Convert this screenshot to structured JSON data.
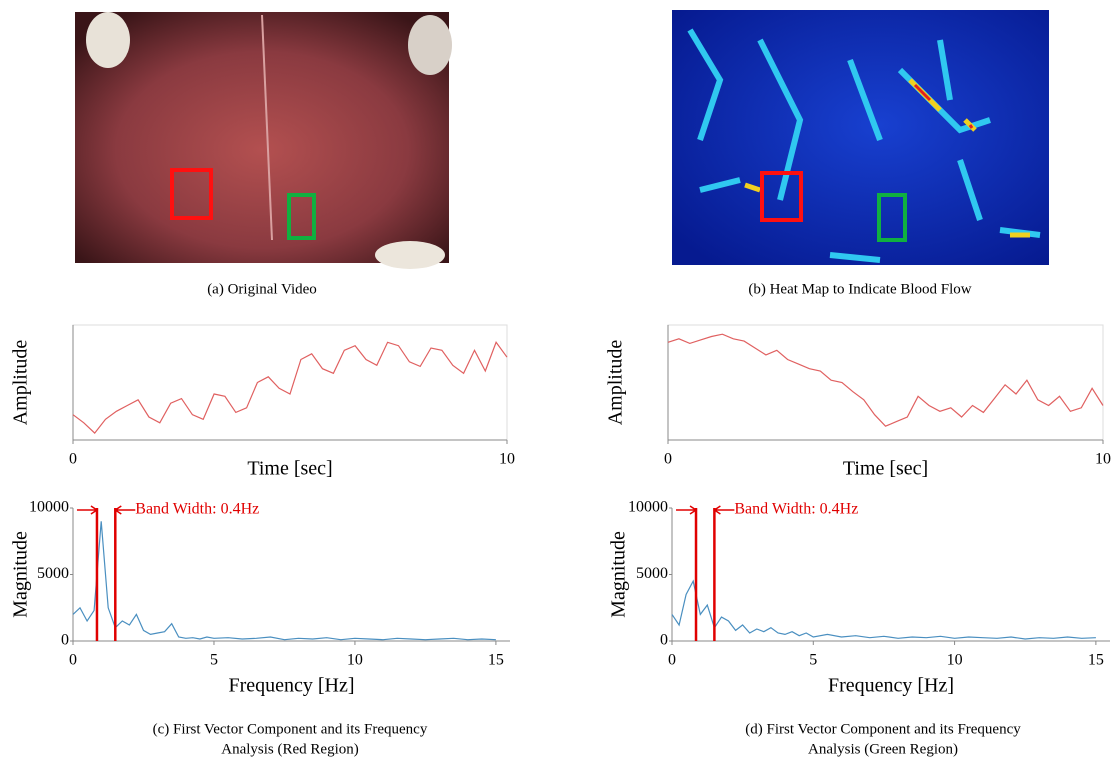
{
  "captions": [
    "(a) Original Video",
    "(b) Heat Map to Indicate Blood Flow",
    [
      "(c) First Vector Component and its Frequency",
      "Analysis (Red Region)"
    ],
    [
      "(d) First Vector Component and its Frequency",
      "Analysis (Green Region)"
    ]
  ],
  "chart_data": [
    {
      "type": "line",
      "x_label": "Time  [sec]",
      "y_label": "Amplitude",
      "color": "#e06060",
      "x": [
        0,
        0.25,
        0.5,
        0.75,
        1,
        1.25,
        1.5,
        1.75,
        2,
        2.25,
        2.5,
        2.75,
        3,
        3.25,
        3.5,
        3.75,
        4,
        4.25,
        4.5,
        4.75,
        5,
        5.25,
        5.5,
        5.75,
        6,
        6.25,
        6.5,
        6.75,
        7,
        7.25,
        7.5,
        7.75,
        8,
        8.25,
        8.5,
        8.75,
        9,
        9.25,
        9.5,
        9.75,
        10
      ],
      "values": [
        22,
        15,
        6,
        18,
        25,
        30,
        35,
        20,
        15,
        32,
        36,
        22,
        18,
        40,
        38,
        24,
        28,
        50,
        55,
        45,
        40,
        70,
        75,
        62,
        58,
        78,
        82,
        70,
        65,
        85,
        82,
        68,
        64,
        80,
        78,
        65,
        58,
        78,
        60,
        85,
        72
      ],
      "xlim": [
        0,
        10
      ],
      "ylim": [
        0,
        100
      ],
      "xticks": [
        0,
        10
      ]
    },
    {
      "type": "line",
      "x_label": "Frequency  [Hz]",
      "y_label": "Magnitude",
      "color": "#4a8fc0",
      "x": [
        0,
        0.25,
        0.5,
        0.75,
        1,
        1.25,
        1.5,
        1.75,
        2,
        2.25,
        2.5,
        2.75,
        3,
        3.25,
        3.5,
        3.75,
        4,
        4.25,
        4.5,
        4.75,
        5,
        5.5,
        6,
        6.5,
        7,
        7.5,
        8,
        8.5,
        9,
        9.5,
        10,
        10.5,
        11,
        11.5,
        12,
        12.5,
        13,
        13.5,
        14,
        14.5,
        15
      ],
      "values": [
        2000,
        2500,
        1500,
        2300,
        9000,
        2500,
        1000,
        1500,
        1200,
        2000,
        800,
        500,
        600,
        700,
        1300,
        300,
        200,
        250,
        150,
        300,
        200,
        250,
        150,
        200,
        300,
        100,
        200,
        150,
        250,
        100,
        200,
        150,
        100,
        200,
        150,
        100,
        150,
        200,
        100,
        150,
        100
      ],
      "xlim": [
        0,
        15.5
      ],
      "ylim": [
        0,
        10000
      ],
      "xticks": [
        0,
        5,
        10,
        15
      ],
      "yticks": [
        0,
        5000,
        10000
      ],
      "annotation": "Band Width: 0.4Hz",
      "band_lines": [
        0.85,
        1.5
      ],
      "band_color": "#e00000"
    },
    {
      "type": "line",
      "x_label": "Time  [sec]",
      "y_label": "Amplitude",
      "color": "#e06060",
      "x": [
        0,
        0.25,
        0.5,
        0.75,
        1,
        1.25,
        1.5,
        1.75,
        2,
        2.25,
        2.5,
        2.75,
        3,
        3.25,
        3.5,
        3.75,
        4,
        4.25,
        4.5,
        4.75,
        5,
        5.25,
        5.5,
        5.75,
        6,
        6.25,
        6.5,
        6.75,
        7,
        7.25,
        7.5,
        7.75,
        8,
        8.25,
        8.5,
        8.75,
        9,
        9.25,
        9.5,
        9.75,
        10
      ],
      "values": [
        85,
        88,
        84,
        87,
        90,
        92,
        88,
        86,
        80,
        74,
        78,
        70,
        66,
        62,
        60,
        52,
        50,
        42,
        35,
        22,
        12,
        16,
        20,
        38,
        30,
        25,
        28,
        20,
        30,
        24,
        36,
        48,
        40,
        52,
        35,
        30,
        38,
        25,
        28,
        45,
        30
      ],
      "xlim": [
        0,
        10
      ],
      "ylim": [
        0,
        100
      ],
      "xticks": [
        0,
        10
      ]
    },
    {
      "type": "line",
      "x_label": "Frequency  [Hz]",
      "y_label": "Magnitude",
      "color": "#4a8fc0",
      "x": [
        0,
        0.25,
        0.5,
        0.75,
        1,
        1.25,
        1.5,
        1.75,
        2,
        2.25,
        2.5,
        2.75,
        3,
        3.25,
        3.5,
        3.75,
        4,
        4.25,
        4.5,
        4.75,
        5,
        5.5,
        6,
        6.5,
        7,
        7.5,
        8,
        8.5,
        9,
        9.5,
        10,
        10.5,
        11,
        11.5,
        12,
        12.5,
        13,
        13.5,
        14,
        14.5,
        15
      ],
      "values": [
        2000,
        1200,
        3500,
        4500,
        2000,
        2700,
        1000,
        1800,
        1500,
        800,
        1200,
        600,
        900,
        700,
        1000,
        600,
        500,
        700,
        400,
        600,
        300,
        500,
        300,
        400,
        250,
        350,
        200,
        300,
        250,
        350,
        200,
        300,
        250,
        200,
        300,
        150,
        250,
        200,
        300,
        200,
        250
      ],
      "xlim": [
        0,
        15.5
      ],
      "ylim": [
        0,
        10000
      ],
      "xticks": [
        0,
        5,
        10,
        15
      ],
      "yticks": [
        0,
        5000,
        10000
      ],
      "annotation": "Band Width: 0.4Hz",
      "band_lines": [
        0.85,
        1.5
      ],
      "band_color": "#e00000"
    }
  ]
}
